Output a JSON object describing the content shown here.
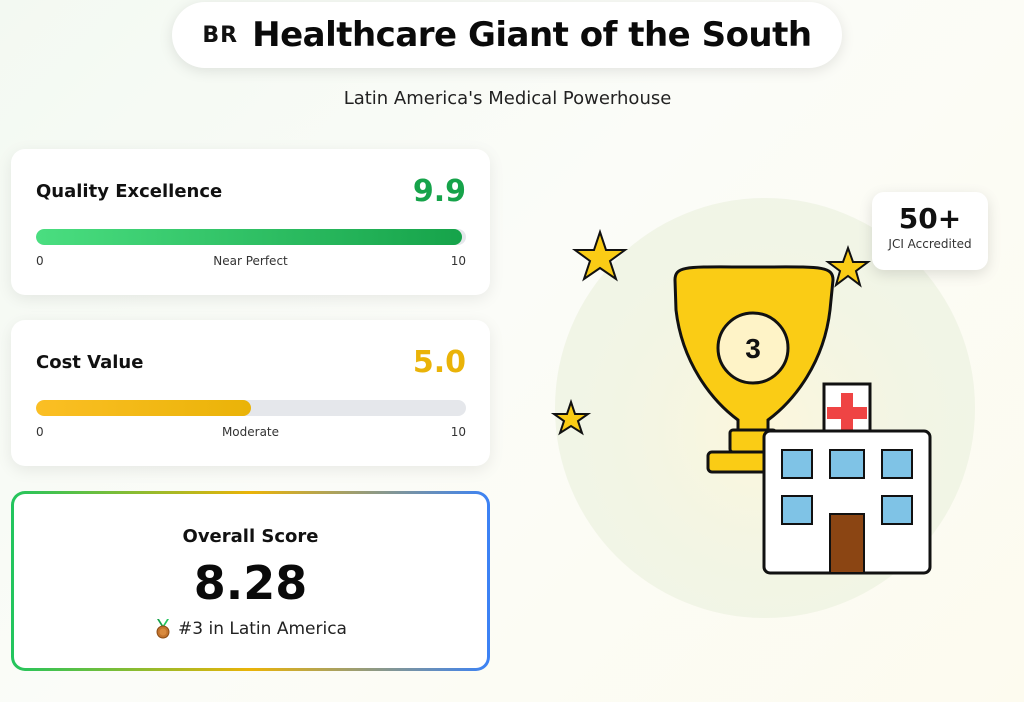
{
  "header": {
    "country_code": "BR",
    "title": "Healthcare Giant of the South",
    "subtitle": "Latin America's Medical Powerhouse"
  },
  "metrics": [
    {
      "label": "Quality Excellence",
      "score": "9.9",
      "fill_fraction": 0.99,
      "min": "0",
      "mid_label": "Near Perfect",
      "max": "10",
      "color": "#16a34a"
    },
    {
      "label": "Cost Value",
      "score": "5.0",
      "fill_fraction": 0.5,
      "min": "0",
      "mid_label": "Moderate",
      "max": "10",
      "color": "#eab308"
    }
  ],
  "overall": {
    "label": "Overall Score",
    "score": "8.28",
    "rank_icon": "medal-icon",
    "rank_text": "#3 in Latin America"
  },
  "illustration": {
    "trophy_number": "3",
    "icons": [
      "trophy-icon",
      "hospital-icon",
      "star-icon"
    ]
  },
  "badge": {
    "value": "50+",
    "caption": "JCI Accredited"
  }
}
